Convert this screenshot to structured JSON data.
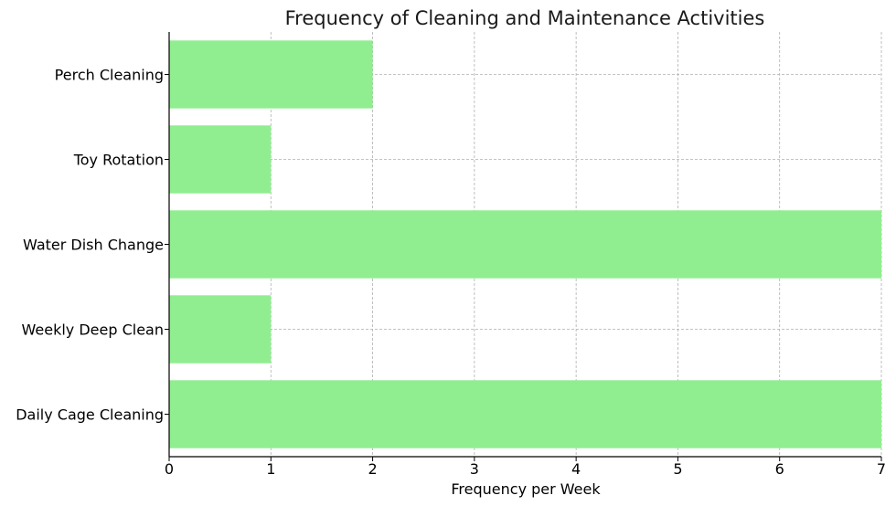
{
  "chart_data": {
    "type": "bar",
    "orientation": "horizontal",
    "title": "Frequency of Cleaning and Maintenance Activities",
    "xlabel": "Frequency per Week",
    "ylabel": "",
    "categories": [
      "Daily Cage Cleaning",
      "Weekly Deep Clean",
      "Water Dish Change",
      "Toy Rotation",
      "Perch Cleaning"
    ],
    "values": [
      7,
      1,
      7,
      1,
      2
    ],
    "xlim": [
      0,
      7
    ],
    "xticks": [
      "0",
      "1",
      "2",
      "3",
      "4",
      "5",
      "6",
      "7"
    ],
    "grid": true,
    "bar_color": "#90ee90"
  }
}
